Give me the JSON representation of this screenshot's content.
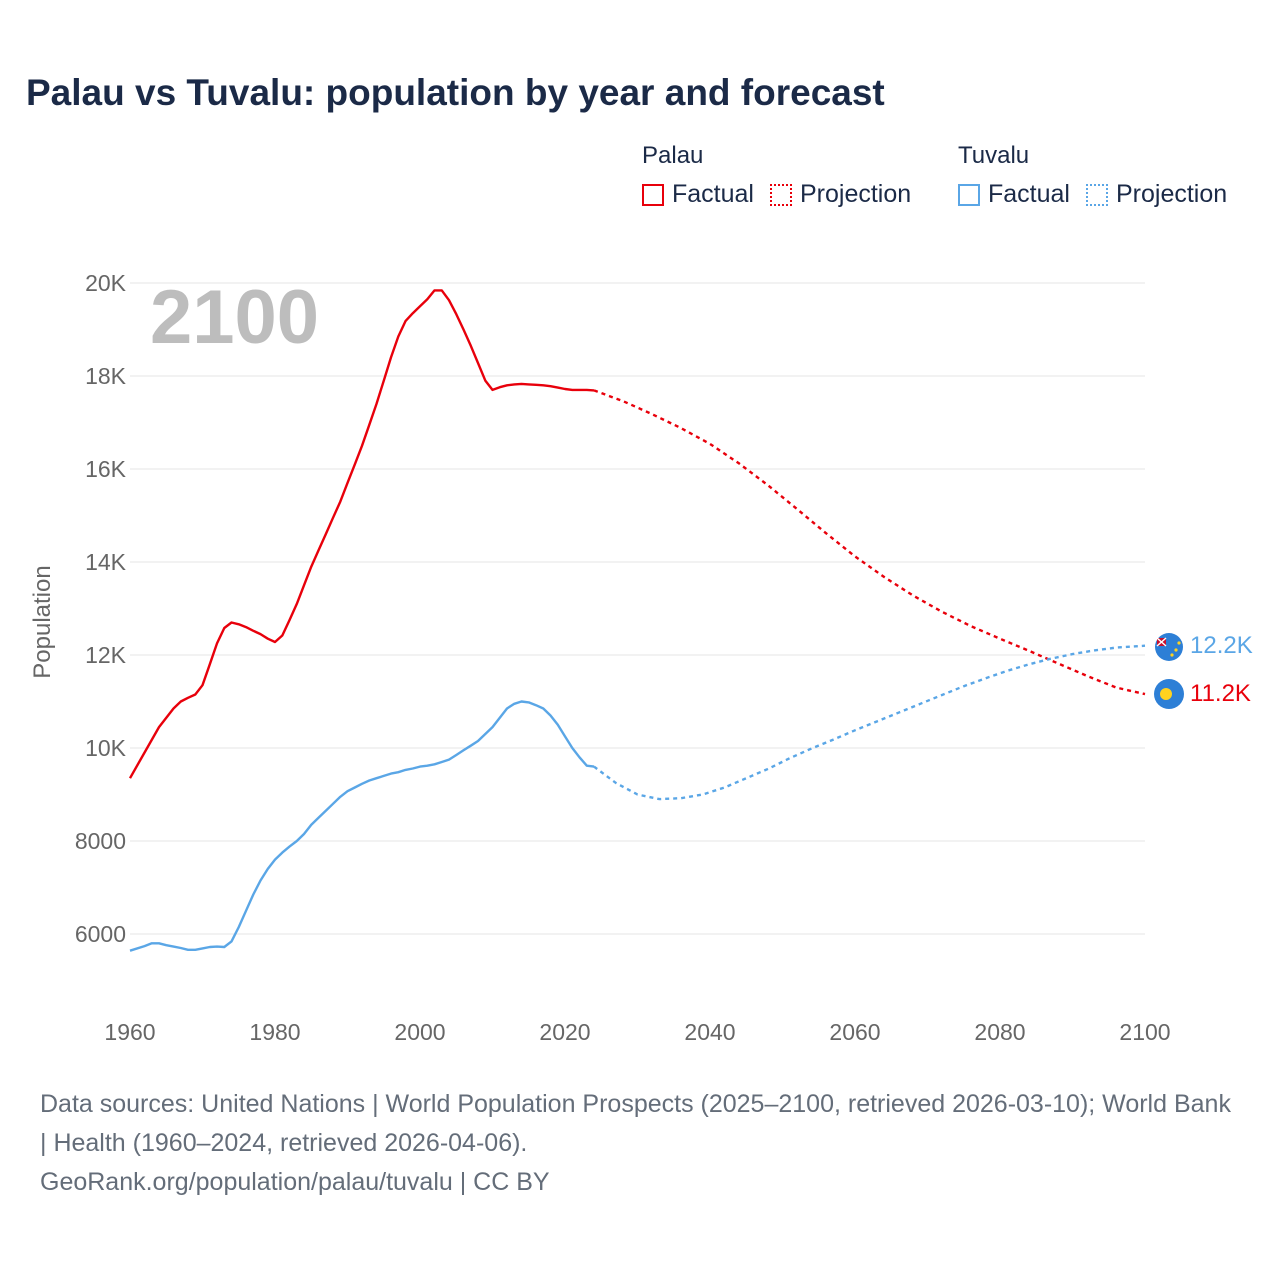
{
  "title": "Palau vs Tuvalu: population by year and forecast",
  "legend": {
    "groups": [
      {
        "name": "Palau",
        "color": "#e8000b",
        "factual_label": "Factual",
        "projection_label": "Projection"
      },
      {
        "name": "Tuvalu",
        "color": "#5aa6e6",
        "factual_label": "Factual",
        "projection_label": "Projection"
      }
    ]
  },
  "sources": {
    "line1": "Data sources: United Nations | World Population Prospects (2025–2100, retrieved 2026-03-10); World Bank | Health (1960–2024, retrieved 2026-04-06).",
    "line2": "GeoRank.org/population/palau/tuvalu | CC BY"
  },
  "chart_data": {
    "type": "line",
    "title": "Palau vs Tuvalu: population by year and forecast",
    "xlabel": "",
    "ylabel": "Population",
    "xlim": [
      1960,
      2100
    ],
    "ylim": [
      5000,
      20500
    ],
    "x_ticks": [
      1960,
      1980,
      2000,
      2020,
      2040,
      2060,
      2080,
      2100
    ],
    "x_tick_labels": [
      "1960",
      "1980",
      "2000",
      "2020",
      "2040",
      "2060",
      "2080",
      "2100"
    ],
    "y_ticks": [
      6000,
      8000,
      10000,
      12000,
      14000,
      16000,
      18000,
      20000
    ],
    "y_tick_labels": [
      "6000",
      "8000",
      "10K",
      "12K",
      "14K",
      "16K",
      "18K",
      "20K"
    ],
    "grid": true,
    "year_overlay": "2100",
    "end_labels": [
      {
        "series": "Tuvalu",
        "text": "12.2K"
      },
      {
        "series": "Palau",
        "text": "11.2K"
      }
    ],
    "series": [
      {
        "name": "Palau",
        "color": "#e8000b",
        "factual": {
          "x": [
            1960,
            1962,
            1964,
            1966,
            1967,
            1968,
            1969,
            1970,
            1971,
            1972,
            1973,
            1974,
            1975,
            1976,
            1977,
            1978,
            1979,
            1980,
            1981,
            1982,
            1983,
            1984,
            1985,
            1986,
            1987,
            1988,
            1989,
            1990,
            1991,
            1992,
            1993,
            1994,
            1995,
            1996,
            1997,
            1998,
            1999,
            2000,
            2001,
            2002,
            2003,
            2004,
            2005,
            2006,
            2007,
            2008,
            2009,
            2010,
            2011,
            2012,
            2013,
            2014,
            2015,
            2016,
            2017,
            2018,
            2019,
            2020,
            2021,
            2022,
            2023,
            2024
          ],
          "y": [
            9350,
            9900,
            10450,
            10850,
            11000,
            11080,
            11150,
            11350,
            11800,
            12250,
            12580,
            12700,
            12660,
            12600,
            12520,
            12450,
            12350,
            12280,
            12420,
            12750,
            13100,
            13500,
            13900,
            14250,
            14600,
            14950,
            15300,
            15700,
            16100,
            16500,
            16950,
            17400,
            17900,
            18400,
            18850,
            19180,
            19350,
            19500,
            19650,
            19840,
            19840,
            19630,
            19330,
            19000,
            18650,
            18280,
            17900,
            17700,
            17760,
            17800,
            17820,
            17830,
            17820,
            17810,
            17800,
            17780,
            17750,
            17720,
            17700,
            17700,
            17700,
            17690
          ]
        },
        "projection": {
          "x": [
            2024,
            2028,
            2032,
            2036,
            2040,
            2044,
            2048,
            2052,
            2056,
            2060,
            2064,
            2068,
            2072,
            2076,
            2080,
            2084,
            2088,
            2092,
            2096,
            2100
          ],
          "y": [
            17690,
            17460,
            17180,
            16880,
            16540,
            16120,
            15650,
            15140,
            14620,
            14120,
            13680,
            13280,
            12930,
            12620,
            12350,
            12090,
            11820,
            11550,
            11300,
            11160
          ]
        }
      },
      {
        "name": "Tuvalu",
        "color": "#5aa6e6",
        "factual": {
          "x": [
            1960,
            1962,
            1963,
            1964,
            1965,
            1966,
            1967,
            1968,
            1969,
            1970,
            1971,
            1972,
            1973,
            1974,
            1975,
            1976,
            1977,
            1978,
            1979,
            1980,
            1981,
            1982,
            1983,
            1984,
            1985,
            1986,
            1987,
            1988,
            1989,
            1990,
            1991,
            1992,
            1993,
            1994,
            1995,
            1996,
            1997,
            1998,
            1999,
            2000,
            2001,
            2002,
            2003,
            2004,
            2005,
            2006,
            2007,
            2008,
            2009,
            2010,
            2011,
            2012,
            2013,
            2014,
            2015,
            2016,
            2017,
            2018,
            2019,
            2020,
            2021,
            2022,
            2023,
            2024
          ],
          "y": [
            5640,
            5740,
            5800,
            5800,
            5760,
            5730,
            5700,
            5660,
            5660,
            5690,
            5720,
            5730,
            5720,
            5840,
            6150,
            6500,
            6850,
            7150,
            7400,
            7600,
            7750,
            7880,
            8000,
            8150,
            8350,
            8500,
            8650,
            8800,
            8950,
            9070,
            9150,
            9230,
            9300,
            9350,
            9400,
            9450,
            9480,
            9530,
            9560,
            9600,
            9620,
            9650,
            9700,
            9750,
            9850,
            9950,
            10050,
            10150,
            10300,
            10450,
            10650,
            10850,
            10950,
            11000,
            10980,
            10920,
            10850,
            10700,
            10500,
            10250,
            10000,
            9800,
            9620,
            9600
          ]
        },
        "projection": {
          "x": [
            2024,
            2027,
            2030,
            2033,
            2036,
            2039,
            2042,
            2045,
            2048,
            2051,
            2054,
            2057,
            2060,
            2063,
            2066,
            2069,
            2072,
            2075,
            2078,
            2081,
            2084,
            2087,
            2090,
            2093,
            2096,
            2100
          ],
          "y": [
            9600,
            9250,
            9000,
            8900,
            8920,
            9000,
            9150,
            9350,
            9550,
            9780,
            9990,
            10180,
            10380,
            10570,
            10760,
            10950,
            11140,
            11330,
            11500,
            11660,
            11800,
            11920,
            12020,
            12100,
            12160,
            12200
          ]
        }
      }
    ]
  }
}
